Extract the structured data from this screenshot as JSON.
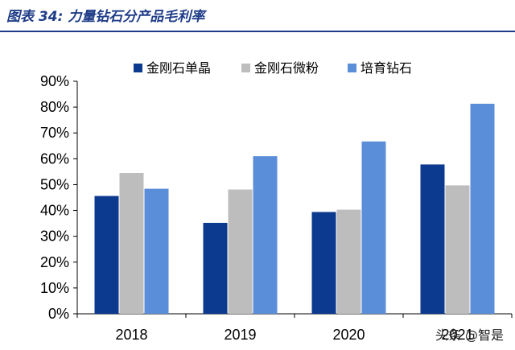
{
  "caption": "图表 34:  力量钻石分产品毛利率",
  "watermark": "头条 @智是",
  "colors": {
    "caption": "#1f3c88"
  },
  "chart_data": {
    "type": "bar",
    "categories": [
      "2018",
      "2019",
      "2020",
      "2021"
    ],
    "series": [
      {
        "name": "金刚石单晶",
        "color": "#0b3a8f",
        "values": [
          45.6,
          35.2,
          39.4,
          57.8
        ]
      },
      {
        "name": "金刚石微粉",
        "color": "#bdbdbd",
        "values": [
          54.5,
          48.1,
          40.3,
          49.7
        ]
      },
      {
        "name": "培育钻石",
        "color": "#5b8ed8",
        "values": [
          48.4,
          61.0,
          66.7,
          81.3
        ]
      }
    ],
    "ylim": [
      0,
      90
    ],
    "yticks": [
      "0%",
      "10%",
      "20%",
      "30%",
      "40%",
      "50%",
      "60%",
      "70%",
      "80%",
      "90%"
    ],
    "legend": "top",
    "grid": false
  }
}
